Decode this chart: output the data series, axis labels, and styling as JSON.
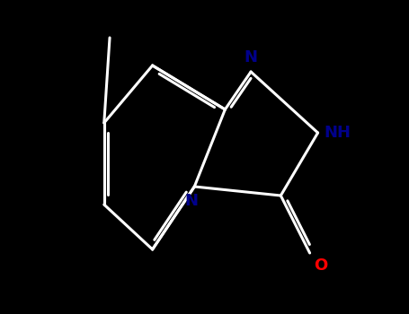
{
  "background_color": "#000000",
  "bond_color": "#ffffff",
  "n_color": "#00008B",
  "o_color": "#ff0000",
  "figsize": [
    4.55,
    3.5
  ],
  "dpi": 100,
  "lw": 2.2,
  "fs_label": 13,
  "BL": 1.0,
  "xlim": [
    -3.5,
    3.5
  ],
  "ylim": [
    -3.0,
    3.0
  ]
}
